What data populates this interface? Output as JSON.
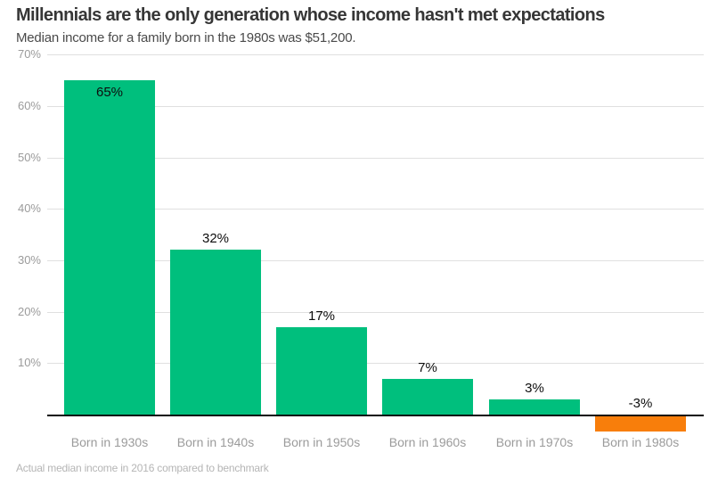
{
  "header": {
    "title": "Millennials are the only generation whose income hasn't met expectations",
    "subtitle": "Median income for a family born in the 1980s was $51,200."
  },
  "footer": {
    "note": "Actual median income in 2016 compared to benchmark"
  },
  "chart_data": {
    "type": "bar",
    "title": "Millennials are the only generation whose income hasn't met expectations",
    "subtitle": "Median income for a family born in the 1980s was $51,200.",
    "categories": [
      "Born in 1930s",
      "Born in 1940s",
      "Born in 1950s",
      "Born in 1960s",
      "Born in 1970s",
      "Born in 1980s"
    ],
    "values": [
      65,
      32,
      17,
      7,
      3,
      -3
    ],
    "value_labels": [
      "65%",
      "32%",
      "17%",
      "7%",
      "3%",
      "-3%"
    ],
    "xlabel": "",
    "ylabel": "",
    "y_ticks": [
      70,
      60,
      50,
      40,
      30,
      20,
      10
    ],
    "y_tick_labels": [
      "70%",
      "60%",
      "50%",
      "40%",
      "30%",
      "20%",
      "10%"
    ],
    "ylim": [
      -5,
      70
    ],
    "grid": true,
    "legend": "none",
    "positive_bar_color": "#00bf7d",
    "negative_bar_color": "#f87e0b",
    "grid_color": "#e0e0e0",
    "axis_line_color": "#0b0b0b",
    "note": "Actual median income in 2016 compared to benchmark"
  }
}
